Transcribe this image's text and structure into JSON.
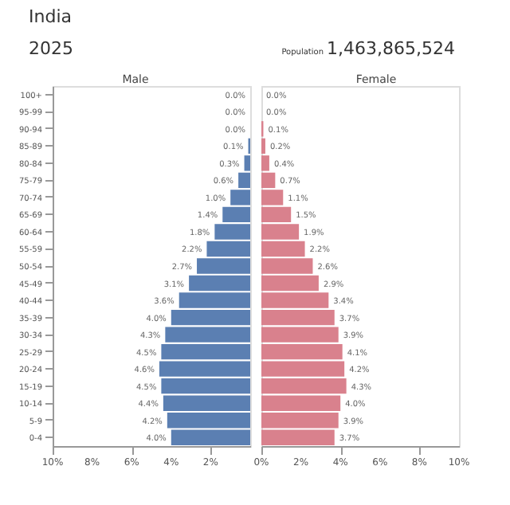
{
  "chart_data": [
    {
      "type": "bar",
      "orientation": "horizontal",
      "title": "India",
      "subtitle": "2025",
      "annotations": [
        "Population",
        "1,463,865,524"
      ],
      "categories": [
        "100+",
        "95-99",
        "90-94",
        "85-89",
        "80-84",
        "75-79",
        "70-74",
        "65-69",
        "60-64",
        "55-59",
        "50-54",
        "45-49",
        "40-44",
        "35-39",
        "30-34",
        "25-29",
        "20-24",
        "15-19",
        "10-14",
        "5-9",
        "0-4"
      ],
      "series": [
        {
          "name": "Male",
          "color": "#5b7fb2",
          "values": [
            0.0,
            0.0,
            0.0,
            0.1,
            0.3,
            0.6,
            1.0,
            1.4,
            1.8,
            2.2,
            2.7,
            3.1,
            3.6,
            4.0,
            4.3,
            4.5,
            4.6,
            4.5,
            4.4,
            4.2,
            4.0
          ],
          "value_labels": [
            "0.0%",
            "0.0%",
            "0.0%",
            "0.1%",
            "0.3%",
            "0.6%",
            "1.0%",
            "1.4%",
            "1.8%",
            "2.2%",
            "2.7%",
            "3.1%",
            "3.6%",
            "4.0%",
            "4.3%",
            "4.5%",
            "4.6%",
            "4.5%",
            "4.4%",
            "4.2%",
            "4.0%"
          ]
        }
      ],
      "xlim": [
        10,
        0
      ],
      "xticks": [
        {
          "value": 10,
          "label": "10%"
        },
        {
          "value": 8,
          "label": "8%"
        },
        {
          "value": 6,
          "label": "6%"
        },
        {
          "value": 4,
          "label": "4%"
        },
        {
          "value": 2,
          "label": "2%"
        },
        {
          "value": 0,
          "label": null
        }
      ],
      "grid": false,
      "legend": false
    },
    {
      "type": "bar",
      "orientation": "horizontal",
      "series": [
        {
          "name": "Female",
          "color": "#d9818d",
          "values": [
            0.0,
            0.0,
            0.1,
            0.2,
            0.4,
            0.7,
            1.1,
            1.5,
            1.9,
            2.2,
            2.6,
            2.9,
            3.4,
            3.7,
            3.9,
            4.1,
            4.2,
            4.3,
            4.0,
            3.9,
            3.7
          ],
          "value_labels": [
            "0.0%",
            "0.0%",
            "0.1%",
            "0.2%",
            "0.4%",
            "0.7%",
            "1.1%",
            "1.5%",
            "1.9%",
            "2.2%",
            "2.6%",
            "2.9%",
            "3.4%",
            "3.7%",
            "3.9%",
            "4.1%",
            "4.2%",
            "4.3%",
            "4.0%",
            "3.9%",
            "3.7%"
          ]
        }
      ],
      "xlim": [
        0,
        10
      ],
      "xticks": [
        {
          "value": 0,
          "label": "0%"
        },
        {
          "value": 2,
          "label": "2%"
        },
        {
          "value": 4,
          "label": "4%"
        },
        {
          "value": 6,
          "label": "6%"
        },
        {
          "value": 8,
          "label": "8%"
        },
        {
          "value": 10,
          "label": "10%"
        }
      ],
      "tick_labels": "x",
      "grid": false,
      "legend": false
    }
  ]
}
